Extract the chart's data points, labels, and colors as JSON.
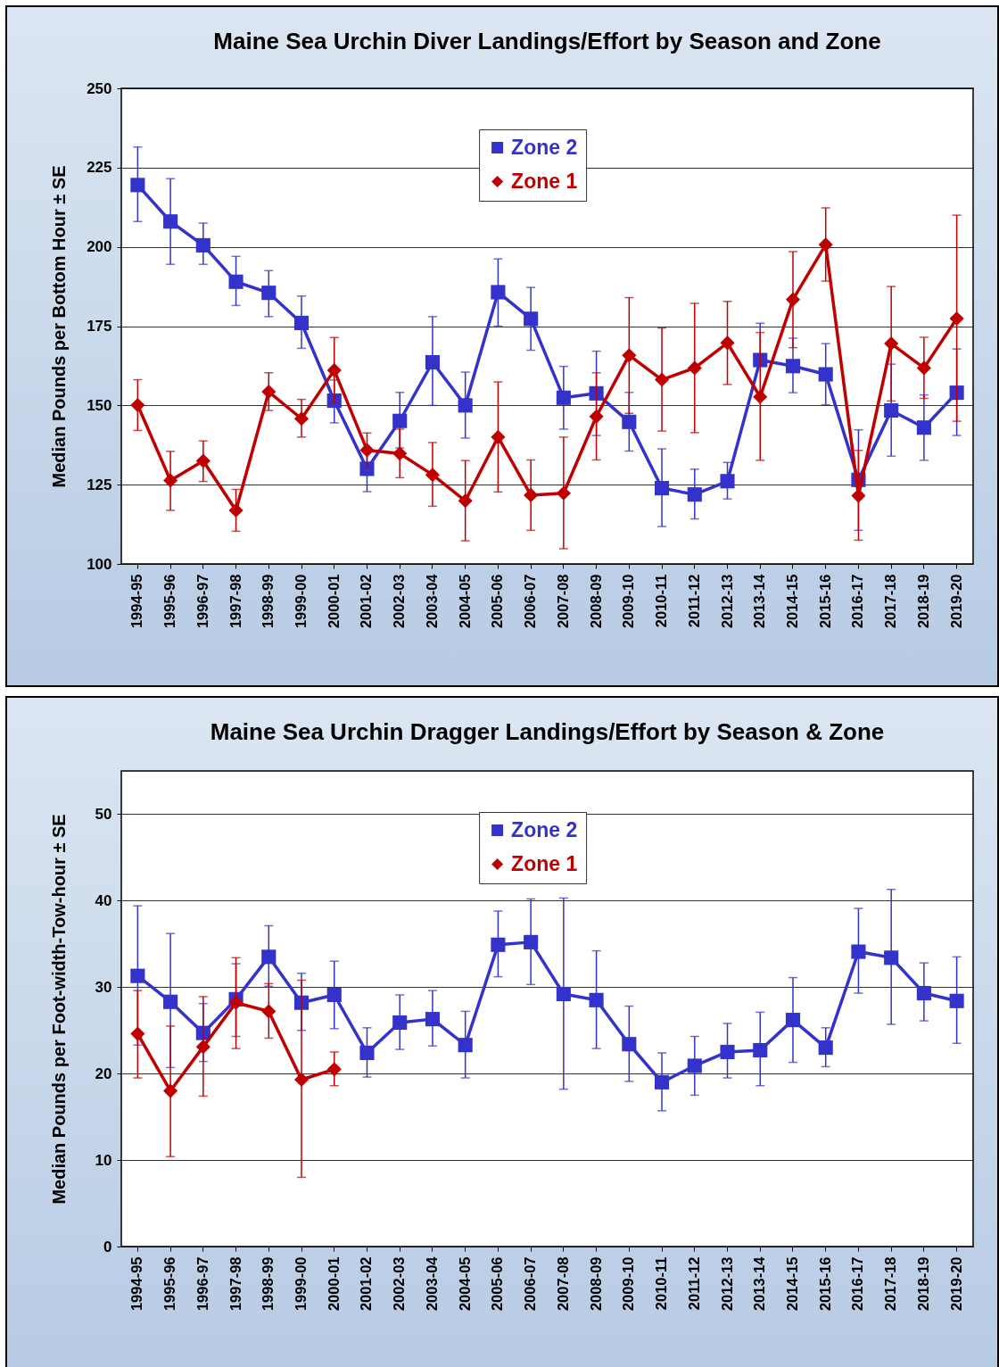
{
  "chart_data": [
    {
      "type": "line",
      "title": "Maine Sea Urchin Diver Landings/Effort by Season and Zone",
      "ylabel": "Median Pounds per Bottom Hour ± SE",
      "categories": [
        "1994-95",
        "1995-96",
        "1996-97",
        "1997-98",
        "1998-99",
        "1999-00",
        "2000-01",
        "2001-02",
        "2002-03",
        "2003-04",
        "2004-05",
        "2005-06",
        "2006-07",
        "2007-08",
        "2008-09",
        "2009-10",
        "2010-11",
        "2011-12",
        "2012-13",
        "2013-14",
        "2014-15",
        "2015-16",
        "2016-17",
        "2017-18",
        "2018-19",
        "2019-20"
      ],
      "ylim": [
        100,
        250
      ],
      "yticks": [
        100,
        125,
        150,
        175,
        200,
        225,
        250
      ],
      "grid": "y",
      "legend": "top",
      "series": [
        {
          "name": "Zone 2",
          "color": "#3333cc",
          "marker": "square",
          "values": [
            219.5,
            208,
            200.5,
            189,
            185.5,
            176,
            151.5,
            130,
            145.1,
            163.6,
            150,
            185.7,
            177.3,
            152.4,
            153.8,
            144.8,
            123.9,
            121.9,
            126.1,
            164.3,
            162.4,
            159.8,
            126.5,
            148.4,
            143,
            154
          ],
          "errors": [
            [
              208,
              231.5
            ],
            [
              194.5,
              221.5
            ],
            [
              194.5,
              207.5
            ],
            [
              181.5,
              197
            ],
            [
              178,
              192.5
            ],
            [
              168,
              184.5
            ],
            [
              144.5,
              158
            ],
            [
              122.8,
              136.6
            ],
            [
              136.6,
              154.1
            ],
            [
              150,
              178
            ],
            [
              139.7,
              160.5
            ],
            [
              175,
              196.2
            ],
            [
              167.4,
              187.2
            ],
            [
              142.5,
              162.3
            ],
            [
              140.5,
              167.1
            ],
            [
              135.6,
              154.1
            ],
            [
              111.8,
              136.3
            ],
            [
              114.2,
              129.9
            ],
            [
              120.5,
              132
            ],
            [
              164.3,
              175.9
            ],
            [
              154,
              171.2
            ],
            [
              150.2,
              169.5
            ],
            [
              110.6,
              142.3
            ],
            [
              134,
              163
            ],
            [
              132.7,
              153.3
            ],
            [
              140.5,
              167.8
            ]
          ]
        },
        {
          "name": "Zone 1",
          "color": "#c00000",
          "marker": "diamond",
          "values": [
            150.1,
            126.3,
            132.5,
            116.9,
            154.3,
            145.8,
            161.1,
            135.9,
            134.8,
            128.1,
            119.9,
            140,
            121.7,
            122.3,
            146.5,
            165.8,
            158.1,
            161.8,
            169.7,
            152.7,
            183.4,
            200.7,
            121.5,
            169.5,
            161.8,
            177.4
          ],
          "errors": [
            [
              142.1,
              158.1
            ],
            [
              116.9,
              135.5
            ],
            [
              126,
              138.8
            ],
            [
              110.3,
              123.5
            ],
            [
              148.4,
              160.3
            ],
            [
              140,
              151.9
            ],
            [
              150.8,
              171.4
            ],
            [
              130.5,
              141.3
            ],
            [
              127.2,
              142.5
            ],
            [
              118.2,
              138.3
            ],
            [
              107.3,
              132.6
            ],
            [
              122.7,
              157.4
            ],
            [
              110.6,
              132.8
            ],
            [
              104.8,
              140
            ],
            [
              132.8,
              160.3
            ],
            [
              147.5,
              184
            ],
            [
              141.9,
              174.4
            ],
            [
              141.4,
              182.2
            ],
            [
              156.6,
              182.8
            ],
            [
              132.7,
              173
            ],
            [
              168.2,
              198.5
            ],
            [
              189.2,
              212.3
            ],
            [
              107.5,
              135.8
            ],
            [
              151.4,
              187.5
            ],
            [
              152.2,
              171.5
            ],
            [
              145,
              210
            ]
          ]
        }
      ]
    },
    {
      "type": "line",
      "title": "Maine Sea Urchin Dragger Landings/Effort by Season & Zone",
      "ylabel": "Median Pounds per Foot-width-Tow-hour ± SE",
      "categories": [
        "1994-95",
        "1995-96",
        "1996-97",
        "1997-98",
        "1998-99",
        "1999-00",
        "2000-01",
        "2001-02",
        "2002-03",
        "2003-04",
        "2004-05",
        "2005-06",
        "2006-07",
        "2007-08",
        "2008-09",
        "2009-10",
        "2010-11",
        "2011-12",
        "2012-13",
        "2013-14",
        "2014-15",
        "2015-16",
        "2016-17",
        "2017-18",
        "2018-19",
        "2019-20"
      ],
      "ylim": [
        0,
        55
      ],
      "yticks": [
        0,
        10,
        20,
        30,
        40,
        50
      ],
      "grid": "y",
      "legend": "top",
      "series": [
        {
          "name": "Zone 2",
          "color": "#3333cc",
          "marker": "square",
          "values": [
            31.3,
            28.3,
            24.7,
            28.6,
            33.5,
            28.2,
            29.1,
            22.4,
            25.9,
            26.3,
            23.3,
            34.9,
            35.2,
            29.2,
            28.5,
            23.4,
            19,
            20.9,
            22.5,
            22.7,
            26.2,
            23,
            34.1,
            33.4,
            29.3,
            28.4
          ],
          "errors": [
            [
              23.3,
              39.4
            ],
            [
              20.7,
              36.2
            ],
            [
              21.4,
              28.1
            ],
            [
              24.3,
              32.7
            ],
            [
              30.1,
              37.1
            ],
            [
              25,
              31.6
            ],
            [
              25.2,
              33
            ],
            [
              19.6,
              25.3
            ],
            [
              22.8,
              29.1
            ],
            [
              23.2,
              29.6
            ],
            [
              19.5,
              27.2
            ],
            [
              31.2,
              38.8
            ],
            [
              30.3,
              40.2
            ],
            [
              18.2,
              40.3
            ],
            [
              22.9,
              34.2
            ],
            [
              19.1,
              27.8
            ],
            [
              15.7,
              22.4
            ],
            [
              17.5,
              24.3
            ],
            [
              19.5,
              25.8
            ],
            [
              18.6,
              27.1
            ],
            [
              21.3,
              31.1
            ],
            [
              20.8,
              25.3
            ],
            [
              29.3,
              39.1
            ],
            [
              25.7,
              41.3
            ],
            [
              26.1,
              32.8
            ],
            [
              23.5,
              33.5
            ]
          ]
        },
        {
          "name": "Zone 1",
          "color": "#c00000",
          "marker": "diamond",
          "values": [
            24.6,
            18,
            23.1,
            28.2,
            27.2,
            19.3,
            20.5,
            null,
            null,
            null,
            null,
            null,
            null,
            null,
            null,
            null,
            null,
            null,
            null,
            null,
            null,
            null,
            null,
            null,
            null,
            null
          ],
          "errors": [
            [
              19.5,
              29.6
            ],
            [
              10.4,
              25.5
            ],
            [
              17.4,
              28.9
            ],
            [
              22.9,
              33.4
            ],
            [
              24.1,
              30.4
            ],
            [
              8,
              30.8
            ],
            [
              18.6,
              22.5
            ],
            null,
            null,
            null,
            null,
            null,
            null,
            null,
            null,
            null,
            null,
            null,
            null,
            null,
            null,
            null,
            null,
            null,
            null,
            null
          ]
        }
      ]
    }
  ]
}
